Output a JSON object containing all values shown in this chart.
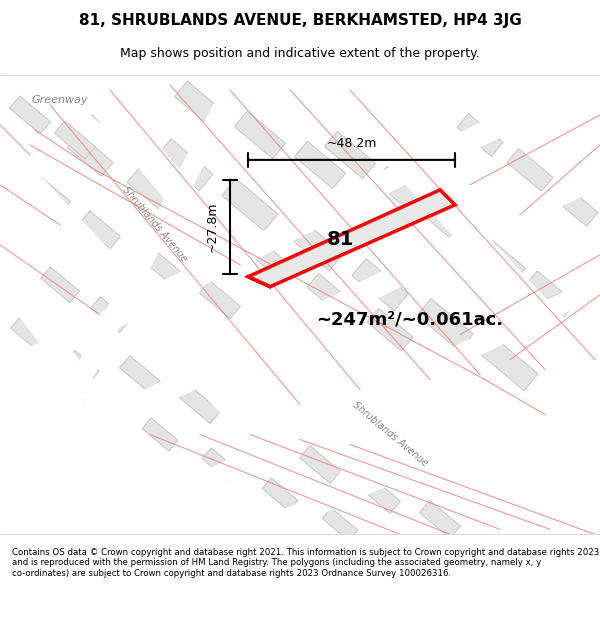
{
  "title": "81, SHRUBLANDS AVENUE, BERKHAMSTED, HP4 3JG",
  "subtitle": "Map shows position and indicative extent of the property.",
  "footer": "Contains OS data © Crown copyright and database right 2021. This information is subject to Crown copyright and database rights 2023 and is reproduced with the permission of HM Land Registry. The polygons (including the associated geometry, namely x, y co-ordinates) are subject to Crown copyright and database rights 2023 Ordnance Survey 100026316.",
  "area_label": "~247m²/~0.061ac.",
  "width_label": "~48.2m",
  "height_label": "~27.8m",
  "plot_number": "81",
  "bg_color": "#f5f5f5",
  "map_bg": "#f0f0f0",
  "plot_fill": "#e8e8e8",
  "plot_outline": "#ff0000",
  "road_color": "#ffffff",
  "building_color": "#e0e0e0",
  "dim_line_color": "#333333",
  "street_label_1": "Shrublands Avenue",
  "street_label_2": "Shrublands Avenue",
  "greenway_label": "Greenway"
}
